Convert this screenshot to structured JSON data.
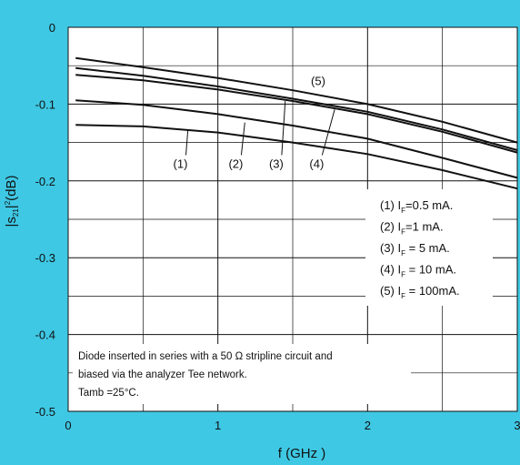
{
  "chart_data": {
    "type": "line",
    "xlabel": "f  (GHz )",
    "ylabel_parts": [
      "|s",
      "21",
      "|",
      "2",
      "(dB)"
    ],
    "xlim": [
      0,
      3
    ],
    "ylim": [
      -0.5,
      0
    ],
    "xticks": [
      0,
      1,
      2,
      3
    ],
    "xtick_labels": [
      "0",
      "1",
      "2",
      "3"
    ],
    "yticks": [
      0,
      -0.1,
      -0.2,
      -0.3,
      -0.4,
      -0.5
    ],
    "ytick_labels": [
      "0",
      "-0.1",
      "-0.2",
      "-0.3",
      "-0.4",
      "-0.5"
    ],
    "xminor": [
      0.5,
      1.5,
      2.5
    ],
    "yminor": [
      -0.05,
      -0.15,
      -0.25,
      -0.35,
      -0.45
    ],
    "grid": true,
    "colors": {
      "background": "#3ec8e4",
      "plot": "#ffffff",
      "line": "#111111",
      "text": "#111111"
    },
    "series": [
      {
        "name": "(1)",
        "x": [
          0.05,
          0.5,
          1.0,
          1.5,
          2.0,
          2.5,
          3.0
        ],
        "y": [
          -0.127,
          -0.129,
          -0.137,
          -0.15,
          -0.165,
          -0.186,
          -0.21
        ]
      },
      {
        "name": "(2)",
        "x": [
          0.05,
          0.5,
          1.0,
          1.5,
          2.0,
          2.5,
          3.0
        ],
        "y": [
          -0.095,
          -0.101,
          -0.113,
          -0.128,
          -0.145,
          -0.17,
          -0.196
        ]
      },
      {
        "name": "(3)",
        "x": [
          0.05,
          0.5,
          1.0,
          1.5,
          2.0,
          2.5,
          3.0
        ],
        "y": [
          -0.062,
          -0.069,
          -0.081,
          -0.096,
          -0.113,
          -0.136,
          -0.163
        ]
      },
      {
        "name": "(4)",
        "x": [
          0.05,
          0.5,
          1.0,
          1.5,
          2.0,
          2.5,
          3.0
        ],
        "y": [
          -0.053,
          -0.063,
          -0.077,
          -0.093,
          -0.11,
          -0.133,
          -0.16
        ]
      },
      {
        "name": "(5)",
        "x": [
          0.05,
          0.5,
          1.0,
          1.5,
          2.0,
          2.5,
          3.0
        ],
        "y": [
          -0.04,
          -0.052,
          -0.066,
          -0.082,
          -0.1,
          -0.123,
          -0.15
        ]
      }
    ],
    "curve_labels": [
      {
        "text": "(1)",
        "at": [
          0.75,
          -0.183
        ],
        "point": [
          0.8,
          -0.133
        ]
      },
      {
        "text": "(2)",
        "at": [
          1.12,
          -0.183
        ],
        "point": [
          1.18,
          -0.124
        ]
      },
      {
        "text": "(3)",
        "at": [
          1.39,
          -0.183
        ],
        "point": [
          1.45,
          -0.096
        ]
      },
      {
        "text": "(4)",
        "at": [
          1.66,
          -0.183
        ],
        "point": [
          1.78,
          -0.107
        ]
      },
      {
        "text": "(5)",
        "at": [
          1.67,
          -0.075
        ],
        "point": null
      }
    ],
    "legend": {
      "position": "right",
      "entries": [
        {
          "num": "(1)",
          "I": "I",
          "sub": "F",
          "value": "=0.5 mA."
        },
        {
          "num": "(2)",
          "I": "I",
          "sub": "F",
          "value": "=1 mA."
        },
        {
          "num": "(3)",
          "I": "I",
          "sub": "F",
          "value": " = 5 mA."
        },
        {
          "num": "(4)",
          "I": "I",
          "sub": "F",
          "value": " = 10 mA."
        },
        {
          "num": "(5)",
          "I": "I",
          "sub": "F",
          "value": " =  100mA."
        }
      ]
    },
    "annotation": [
      "Diode inserted in series with a 50 Ω stripline circuit and",
      "biased via the analyzer Tee network.",
      "Tamb =25°C."
    ]
  }
}
